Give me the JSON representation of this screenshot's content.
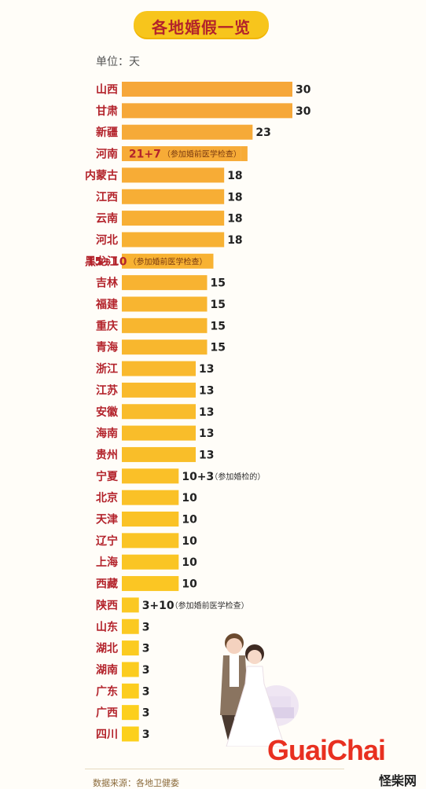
{
  "title": "各地婚假一览",
  "unit_label": "单位：天",
  "source_label": "数据来源：各地卫健委",
  "watermark": {
    "main": "GuaiChai",
    "sub": "怪柴网"
  },
  "colors": {
    "bar_top": "#f6a73a",
    "bar_bottom": "#fcd01c",
    "label": "#b3232b",
    "value": "#222222"
  },
  "chart_data": {
    "type": "bar",
    "orientation": "horizontal",
    "title": "各地婚假一览",
    "unit": "单位：天",
    "categories": [
      "山西",
      "甘肃",
      "新疆",
      "河南",
      "内蒙古",
      "江西",
      "云南",
      "河北",
      "黑龙江",
      "吉林",
      "福建",
      "重庆",
      "青海",
      "浙江",
      "江苏",
      "安徽",
      "海南",
      "贵州",
      "宁夏",
      "北京",
      "天津",
      "辽宁",
      "上海",
      "西藏",
      "陕西",
      "山东",
      "湖北",
      "湖南",
      "广东",
      "广西",
      "四川"
    ],
    "values": [
      30,
      30,
      23,
      21,
      18,
      18,
      18,
      18,
      15,
      15,
      15,
      15,
      15,
      13,
      13,
      13,
      13,
      13,
      10,
      10,
      10,
      10,
      10,
      10,
      3,
      3,
      3,
      3,
      3,
      3,
      3
    ],
    "value_labels": [
      "30",
      "30",
      "23",
      "21+7",
      "18",
      "18",
      "18",
      "18",
      "15+10",
      "15",
      "15",
      "15",
      "15",
      "13",
      "13",
      "13",
      "13",
      "13",
      "10+3",
      "10",
      "10",
      "10",
      "10",
      "10",
      "3+10",
      "3",
      "3",
      "3",
      "3",
      "3",
      "3"
    ],
    "notes": [
      "",
      "",
      "",
      "（参加婚前医学检查）",
      "",
      "",
      "",
      "",
      "（参加婚前医学检查）",
      "",
      "",
      "",
      "",
      "",
      "",
      "",
      "",
      "",
      "（参加婚检的）",
      "",
      "",
      "",
      "",
      "",
      "（参加婚前医学检查）",
      "",
      "",
      "",
      "",
      "",
      ""
    ],
    "xlim": [
      0,
      30
    ]
  }
}
